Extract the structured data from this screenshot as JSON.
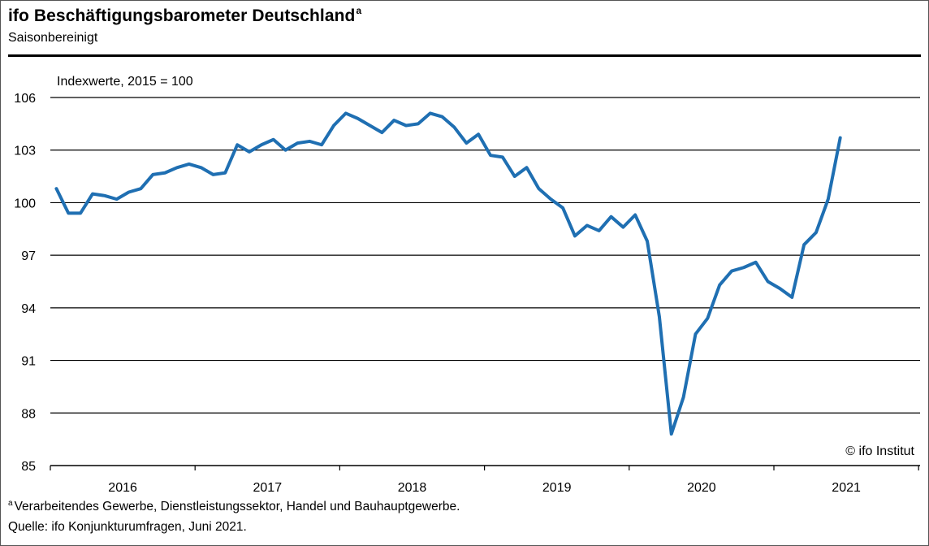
{
  "header": {
    "title": "ifo Beschäftigungsbarometer Deutschland",
    "title_superscript": "a",
    "subtitle": "Saisonbereinigt"
  },
  "footer": {
    "footnote_marker": "a",
    "footnote": "Verarbeitendes Gewerbe, Dienstleistungssektor, Handel und Bauhauptgewerbe.",
    "source": "Quelle: ifo Konjunkturumfragen, Juni 2021."
  },
  "copyright": "© ifo Institut",
  "colors": {
    "line": "#1f6fb2",
    "grid": "#000000"
  },
  "chart_data": {
    "type": "line",
    "title": "ifo Beschäftigungsbarometer Deutschland",
    "subtitle": "Saisonbereinigt",
    "ylabel": "Indexwerte, 2015 = 100",
    "xlabel": "",
    "ylim": [
      85,
      106
    ],
    "yticks": [
      85,
      88,
      91,
      94,
      97,
      100,
      103,
      106
    ],
    "grid": true,
    "x_tick_labels": [
      "2016",
      "2017",
      "2018",
      "2019",
      "2020",
      "2021"
    ],
    "x_start": "2016-01",
    "x_end": "2021-06",
    "series": [
      {
        "values": [
          100.8,
          99.4,
          99.4,
          100.5,
          100.4,
          100.2,
          100.6,
          100.8,
          101.6,
          101.7,
          102.0,
          102.2,
          102.0,
          101.6,
          101.7,
          103.3,
          102.9,
          103.3,
          103.6,
          103.0,
          103.4,
          103.5,
          103.3,
          104.4,
          105.1,
          104.8,
          104.4,
          104.0,
          104.7,
          104.4,
          104.5,
          105.1,
          104.9,
          104.3,
          103.4,
          103.9,
          102.7,
          102.6,
          101.5,
          102.0,
          100.8,
          100.2,
          99.7,
          98.1,
          98.7,
          98.4,
          99.2,
          98.6,
          99.3,
          97.8,
          93.5,
          86.8,
          88.9,
          92.5,
          93.4,
          95.3,
          96.1,
          96.3,
          96.6,
          95.5,
          95.1,
          94.6,
          97.6,
          98.3,
          100.2,
          103.7
        ]
      }
    ]
  }
}
